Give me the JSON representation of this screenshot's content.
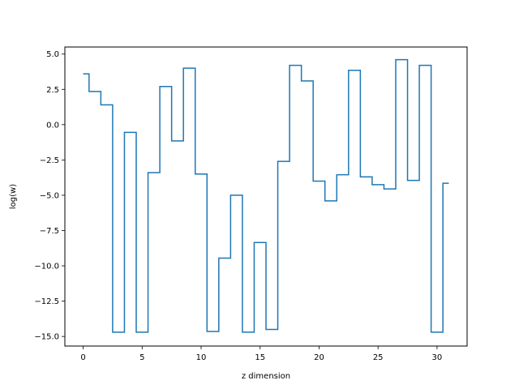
{
  "chart_data": {
    "type": "line",
    "drawstyle": "steps-mid",
    "title": "",
    "xlabel": "z dimension",
    "ylabel": "log(w)",
    "xlim": [
      -1.55,
      32.55
    ],
    "ylim": [
      -15.68,
      5.5
    ],
    "xticks": [
      0,
      5,
      10,
      15,
      20,
      25,
      30
    ],
    "xtick_labels": [
      "0",
      "5",
      "10",
      "15",
      "20",
      "25",
      "30"
    ],
    "yticks": [
      5.0,
      2.5,
      0.0,
      -2.5,
      -5.0,
      -7.5,
      -10.0,
      -12.5,
      -15.0
    ],
    "ytick_labels": [
      "5.0",
      "2.5",
      "0.0",
      "−2.5",
      "−5.0",
      "−7.5",
      "−10.0",
      "−12.5",
      "−15.0"
    ],
    "grid": false,
    "color": "#1f77b4",
    "x": [
      0,
      1,
      2,
      3,
      4,
      5,
      6,
      7,
      8,
      9,
      10,
      11,
      12,
      13,
      14,
      15,
      16,
      17,
      18,
      19,
      20,
      21,
      22,
      23,
      24,
      25,
      26,
      27,
      28,
      29,
      30,
      31
    ],
    "y": [
      3.6,
      2.35,
      1.4,
      -14.7,
      -0.55,
      -14.7,
      -3.4,
      2.7,
      -1.15,
      4.0,
      -3.5,
      -14.65,
      -9.45,
      -5.0,
      -14.7,
      -8.35,
      -14.5,
      -2.6,
      4.2,
      3.1,
      -4.0,
      -5.4,
      -3.55,
      3.85,
      -3.7,
      -4.25,
      -4.55,
      4.6,
      -3.95,
      4.2,
      -14.7,
      -4.15
    ]
  }
}
